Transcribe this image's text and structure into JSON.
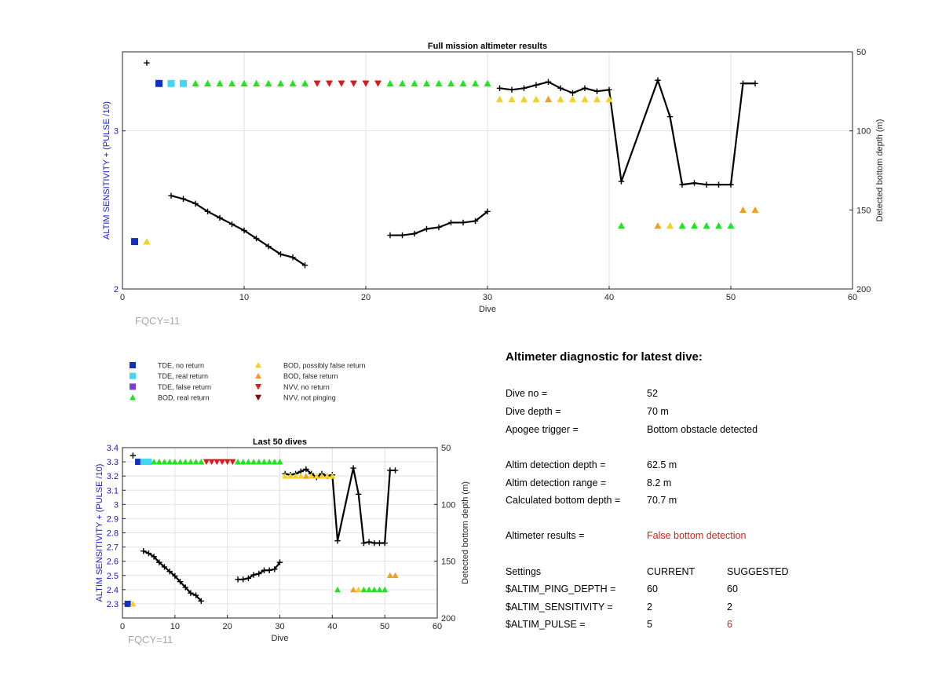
{
  "colors": {
    "blue_axis": "#1a1acc",
    "tde_no_return": "#1030c0",
    "tde_real_return": "#44d4f4",
    "tde_false_return": "#7b3fd0",
    "bod_real_return": "#1ee61e",
    "bod_possibly_false": "#f5d020",
    "bod_false_return": "#f0a020",
    "nvv_no_return": "#dd1a1a",
    "nvv_not_pinging": "#8b0000",
    "depth_line": "#000000",
    "warning_text": "#d62020"
  },
  "chart_data": [
    {
      "type": "scatter",
      "title": "Full mission altimeter results",
      "xlabel": "Dive",
      "ylabel": "ALTIM SENSITIVITY + (PULSE /10)",
      "ylabel_right": "Detected bottom depth (m)",
      "xlim": [
        0,
        60
      ],
      "ylim": [
        2,
        3.5
      ],
      "yticks": [
        2,
        3
      ],
      "y2lim": [
        200,
        50
      ],
      "y2ticks": [
        50,
        100,
        150,
        200
      ],
      "xticks": [
        0,
        10,
        20,
        30,
        40,
        50,
        60
      ],
      "grid": true,
      "note": "FQCY=11",
      "series": [
        {
          "name": "TDE, no return",
          "marker": "square",
          "color_key": "tde_no_return",
          "points": [
            [
              1,
              2.3
            ],
            [
              3,
              3.3
            ]
          ]
        },
        {
          "name": "TDE, real return",
          "marker": "square",
          "color_key": "tde_real_return",
          "points": [
            [
              4,
              3.3
            ],
            [
              5,
              3.3
            ]
          ]
        },
        {
          "name": "BOD, real return",
          "marker": "triangle-up",
          "color_key": "bod_real_return",
          "points": [
            [
              6,
              3.3
            ],
            [
              7,
              3.3
            ],
            [
              8,
              3.3
            ],
            [
              9,
              3.3
            ],
            [
              10,
              3.3
            ],
            [
              11,
              3.3
            ],
            [
              12,
              3.3
            ],
            [
              13,
              3.3
            ],
            [
              14,
              3.3
            ],
            [
              15,
              3.3
            ],
            [
              22,
              3.3
            ],
            [
              23,
              3.3
            ],
            [
              24,
              3.3
            ],
            [
              25,
              3.3
            ],
            [
              26,
              3.3
            ],
            [
              27,
              3.3
            ],
            [
              28,
              3.3
            ],
            [
              29,
              3.3
            ],
            [
              30,
              3.3
            ],
            [
              41,
              2.4
            ],
            [
              46,
              2.4
            ],
            [
              47,
              2.4
            ],
            [
              48,
              2.4
            ],
            [
              49,
              2.4
            ],
            [
              50,
              2.4
            ]
          ]
        },
        {
          "name": "BOD, possibly false return",
          "marker": "triangle-up",
          "color_key": "bod_possibly_false",
          "points": [
            [
              2,
              2.3
            ],
            [
              31,
              3.2
            ],
            [
              32,
              3.2
            ],
            [
              33,
              3.2
            ],
            [
              34,
              3.2
            ],
            [
              36,
              3.2
            ],
            [
              37,
              3.2
            ],
            [
              38,
              3.2
            ],
            [
              39,
              3.2
            ],
            [
              40,
              3.2
            ],
            [
              45,
              2.4
            ]
          ]
        },
        {
          "name": "BOD, false return",
          "marker": "triangle-up",
          "color_key": "bod_false_return",
          "points": [
            [
              35,
              3.2
            ],
            [
              44,
              2.4
            ],
            [
              51,
              2.5
            ],
            [
              52,
              2.5
            ]
          ]
        },
        {
          "name": "NVV, no return",
          "marker": "triangle-down",
          "color_key": "nvv_no_return",
          "points": [
            [
              16,
              3.3
            ],
            [
              17,
              3.3
            ],
            [
              18,
              3.3
            ],
            [
              19,
              3.3
            ],
            [
              20,
              3.3
            ],
            [
              21,
              3.3
            ]
          ]
        }
      ],
      "depth_segments": [
        [
          [
            2,
            57
          ]
        ],
        [
          [
            4,
            141
          ],
          [
            5,
            143
          ],
          [
            6,
            146
          ],
          [
            7,
            151
          ],
          [
            8,
            155
          ],
          [
            9,
            159
          ],
          [
            10,
            163
          ],
          [
            11,
            168
          ],
          [
            12,
            173
          ],
          [
            13,
            178
          ],
          [
            14,
            180
          ],
          [
            15,
            185
          ]
        ],
        [
          [
            22,
            166
          ],
          [
            23,
            166
          ],
          [
            24,
            165
          ],
          [
            25,
            162
          ],
          [
            26,
            161
          ],
          [
            27,
            158
          ],
          [
            28,
            158
          ],
          [
            29,
            157
          ],
          [
            30,
            151
          ]
        ],
        [
          [
            31,
            73
          ],
          [
            32,
            74
          ],
          [
            33,
            73
          ],
          [
            34,
            71
          ],
          [
            35,
            69
          ],
          [
            36,
            73
          ],
          [
            37,
            76
          ],
          [
            38,
            73
          ],
          [
            39,
            75
          ],
          [
            40,
            74
          ],
          [
            41,
            132
          ],
          [
            44,
            68
          ],
          [
            45,
            91
          ],
          [
            46,
            134
          ],
          [
            47,
            133
          ],
          [
            48,
            134
          ],
          [
            49,
            134
          ],
          [
            50,
            134
          ],
          [
            51,
            70
          ],
          [
            52,
            70
          ]
        ]
      ]
    },
    {
      "type": "scatter",
      "title": "Last 50 dives",
      "xlabel": "Dive",
      "ylabel": "ALTIM SENSITIVITY + (PULSE /10)",
      "ylabel_right": "Detected bottom depth (m)",
      "xlim": [
        0,
        60
      ],
      "ylim": [
        2.2,
        3.4
      ],
      "yticks": [
        2.3,
        2.4,
        2.5,
        2.6,
        2.7,
        2.8,
        2.9,
        3,
        3.1,
        3.2,
        3.3,
        3.4
      ],
      "y2lim": [
        200,
        50
      ],
      "y2ticks": [
        50,
        100,
        150,
        200
      ],
      "xticks": [
        0,
        10,
        20,
        30,
        40,
        50,
        60
      ],
      "grid": true,
      "note": "FQCY=11",
      "series": [
        {
          "name": "TDE, no return",
          "marker": "square",
          "color_key": "tde_no_return",
          "points": [
            [
              1,
              2.3
            ],
            [
              3,
              3.3
            ]
          ]
        },
        {
          "name": "TDE, real return",
          "marker": "square",
          "color_key": "tde_real_return",
          "points": [
            [
              4,
              3.3
            ],
            [
              5,
              3.3
            ]
          ]
        },
        {
          "name": "BOD, real return",
          "marker": "triangle-up",
          "color_key": "bod_real_return",
          "points": [
            [
              6,
              3.3
            ],
            [
              7,
              3.3
            ],
            [
              8,
              3.3
            ],
            [
              9,
              3.3
            ],
            [
              10,
              3.3
            ],
            [
              11,
              3.3
            ],
            [
              12,
              3.3
            ],
            [
              13,
              3.3
            ],
            [
              14,
              3.3
            ],
            [
              15,
              3.3
            ],
            [
              22,
              3.3
            ],
            [
              23,
              3.3
            ],
            [
              24,
              3.3
            ],
            [
              25,
              3.3
            ],
            [
              26,
              3.3
            ],
            [
              27,
              3.3
            ],
            [
              28,
              3.3
            ],
            [
              29,
              3.3
            ],
            [
              30,
              3.3
            ],
            [
              41,
              2.4
            ],
            [
              46,
              2.4
            ],
            [
              47,
              2.4
            ],
            [
              48,
              2.4
            ],
            [
              49,
              2.4
            ],
            [
              50,
              2.4
            ]
          ]
        },
        {
          "name": "BOD, possibly false return",
          "marker": "triangle-up",
          "color_key": "bod_possibly_false",
          "points": [
            [
              2,
              2.3
            ],
            [
              31,
              3.2
            ],
            [
              32,
              3.2
            ],
            [
              33,
              3.2
            ],
            [
              34,
              3.2
            ],
            [
              36,
              3.2
            ],
            [
              37,
              3.2
            ],
            [
              38,
              3.2
            ],
            [
              39,
              3.2
            ],
            [
              40,
              3.2
            ],
            [
              45,
              2.4
            ]
          ]
        },
        {
          "name": "BOD, false return",
          "marker": "triangle-up",
          "color_key": "bod_false_return",
          "points": [
            [
              35,
              3.2
            ],
            [
              44,
              2.4
            ],
            [
              51,
              2.5
            ],
            [
              52,
              2.5
            ]
          ]
        },
        {
          "name": "NVV, no return",
          "marker": "triangle-down",
          "color_key": "nvv_no_return",
          "points": [
            [
              16,
              3.3
            ],
            [
              17,
              3.3
            ],
            [
              18,
              3.3
            ],
            [
              19,
              3.3
            ],
            [
              20,
              3.3
            ],
            [
              21,
              3.3
            ]
          ]
        }
      ],
      "depth_segments": [
        [
          [
            2,
            57
          ]
        ],
        [
          [
            4,
            141
          ],
          [
            5,
            143
          ],
          [
            6,
            146
          ],
          [
            7,
            151
          ],
          [
            8,
            155
          ],
          [
            9,
            159
          ],
          [
            10,
            163
          ],
          [
            11,
            168
          ],
          [
            12,
            173
          ],
          [
            13,
            178
          ],
          [
            14,
            180
          ],
          [
            15,
            185
          ]
        ],
        [
          [
            22,
            166
          ],
          [
            23,
            166
          ],
          [
            24,
            165
          ],
          [
            25,
            162
          ],
          [
            26,
            161
          ],
          [
            27,
            158
          ],
          [
            28,
            158
          ],
          [
            29,
            157
          ],
          [
            30,
            151
          ]
        ],
        [
          [
            31,
            73
          ],
          [
            32,
            74
          ],
          [
            33,
            73
          ],
          [
            34,
            71
          ],
          [
            35,
            69
          ],
          [
            36,
            73
          ],
          [
            37,
            76
          ],
          [
            38,
            73
          ],
          [
            39,
            75
          ],
          [
            40,
            74
          ],
          [
            41,
            132
          ],
          [
            44,
            68
          ],
          [
            45,
            91
          ],
          [
            46,
            134
          ],
          [
            47,
            133
          ],
          [
            48,
            134
          ],
          [
            49,
            134
          ],
          [
            50,
            134
          ],
          [
            51,
            70
          ],
          [
            52,
            70
          ]
        ]
      ]
    }
  ],
  "legend": {
    "items": [
      {
        "label": "TDE, no return",
        "marker": "square",
        "color_key": "tde_no_return"
      },
      {
        "label": "TDE, real return",
        "marker": "square",
        "color_key": "tde_real_return"
      },
      {
        "label": "TDE, false return",
        "marker": "square",
        "color_key": "tde_false_return"
      },
      {
        "label": "BOD, real return",
        "marker": "triangle-up",
        "color_key": "bod_real_return"
      },
      {
        "label": "BOD, possibly false return",
        "marker": "triangle-up",
        "color_key": "bod_possibly_false"
      },
      {
        "label": "BOD, false return",
        "marker": "triangle-up",
        "color_key": "bod_false_return"
      },
      {
        "label": "NVV, no return",
        "marker": "triangle-down",
        "color_key": "nvv_no_return"
      },
      {
        "label": "NVV, not pinging",
        "marker": "triangle-down",
        "color_key": "nvv_not_pinging"
      }
    ]
  },
  "diagnostic": {
    "heading": "Altimeter diagnostic for latest dive:",
    "dive_no_label": "Dive no =",
    "dive_no_value": "52",
    "dive_depth_label": "Dive depth =",
    "dive_depth_value": "70 m",
    "apogee_label": "Apogee trigger =",
    "apogee_value": "Bottom obstacle detected",
    "detect_depth_label": "Altim detection depth =",
    "detect_depth_value": "62.5 m",
    "detect_range_label": "Altim detection range =",
    "detect_range_value": "8.2 m",
    "calc_depth_label": "Calculated bottom depth =",
    "calc_depth_value": "70.7 m",
    "results_label": "Altimeter results =",
    "results_value": "False bottom detection",
    "settings_header": "Settings",
    "current_header": "CURRENT",
    "suggested_header": "SUGGESTED",
    "settings": [
      {
        "name": "$ALTIM_PING_DEPTH =",
        "current": "60",
        "suggested": "60",
        "changed": false
      },
      {
        "name": "$ALTIM_SENSITIVITY =",
        "current": "2",
        "suggested": "2",
        "changed": false
      },
      {
        "name": "$ALTIM_PULSE =",
        "current": "5",
        "suggested": "6",
        "changed": true
      }
    ]
  }
}
